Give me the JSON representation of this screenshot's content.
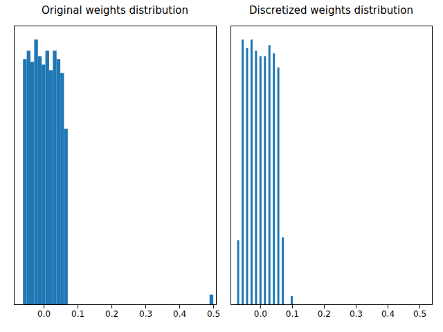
{
  "chart_data": [
    {
      "type": "histogram",
      "title": "Original weights distribution",
      "bins": [
        -0.061,
        -0.05,
        -0.039,
        -0.028,
        -0.017,
        -0.006,
        0.005,
        0.016,
        0.027,
        0.038,
        0.049,
        0.06,
        0.071,
        0.082,
        0.093,
        0.104,
        0.115,
        0.126,
        0.137,
        0.148,
        0.159,
        0.17,
        0.181,
        0.192,
        0.203,
        0.214,
        0.225,
        0.236,
        0.247,
        0.258,
        0.269,
        0.28,
        0.291,
        0.302,
        0.313,
        0.324,
        0.335,
        0.346,
        0.357,
        0.368,
        0.379,
        0.39,
        0.401,
        0.412,
        0.423,
        0.434,
        0.445,
        0.456,
        0.467,
        0.478,
        0.489,
        0.5
      ],
      "counts": [
        88,
        91,
        87,
        95,
        89,
        86,
        91,
        84,
        91,
        88,
        83,
        63,
        0,
        0,
        0,
        0,
        0,
        0,
        0,
        0,
        0,
        0,
        0,
        0,
        0,
        0,
        0,
        0,
        0,
        0,
        0,
        0,
        0,
        0,
        0,
        0,
        0,
        0,
        0,
        0,
        0,
        0,
        0,
        0,
        0,
        0,
        0,
        0,
        0,
        0,
        3.5
      ],
      "color": "#1f77b4",
      "xlim": [
        -0.088,
        0.508
      ],
      "xticks": [
        {
          "value": 0,
          "label": "0.0"
        },
        {
          "value": 0.1,
          "label": "0.1"
        },
        {
          "value": 0.2,
          "label": "0.2"
        },
        {
          "value": 0.3,
          "label": "0.3"
        },
        {
          "value": 0.4,
          "label": "0.4"
        },
        {
          "value": 0.5,
          "label": "0.5"
        }
      ],
      "ylim": [
        0,
        100
      ],
      "grid": false,
      "tick_labels": "x"
    },
    {
      "type": "bar",
      "title": "Discretized weights distribution",
      "x": [
        -0.07,
        -0.056,
        -0.042,
        -0.028,
        -0.014,
        0,
        0.014,
        0.028,
        0.042,
        0.056,
        0.07,
        0.098
      ],
      "values": [
        23,
        95,
        92,
        95,
        91,
        89,
        89,
        93,
        90,
        85,
        24,
        3
      ],
      "color": "#1f77b4",
      "xlim": [
        -0.093,
        0.539
      ],
      "xticks": [
        {
          "value": 0,
          "label": "0.0"
        },
        {
          "value": 0.1,
          "label": "0.1"
        },
        {
          "value": 0.2,
          "label": "0.2"
        },
        {
          "value": 0.3,
          "label": "0.3"
        },
        {
          "value": 0.4,
          "label": "0.4"
        },
        {
          "value": 0.5,
          "label": "0.5"
        }
      ],
      "ylim": [
        0,
        100
      ],
      "grid": false,
      "tick_labels": "x"
    }
  ]
}
